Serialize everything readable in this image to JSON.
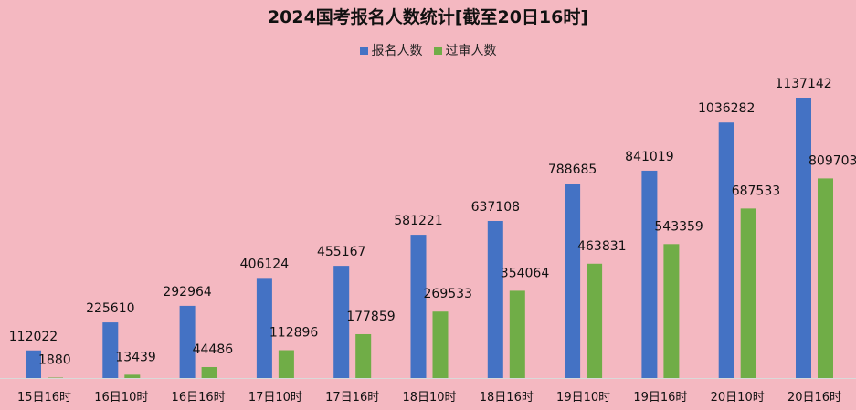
{
  "chart_data": {
    "type": "bar",
    "title": "2024国考报名人数统计[截至20日16时]",
    "categories": [
      "15日16时",
      "16日10时",
      "16日16时",
      "17日10时",
      "17日16时",
      "18日10时",
      "18日16时",
      "19日10时",
      "19日16时",
      "20日10时",
      "20日16时"
    ],
    "series": [
      {
        "name": "报名人数",
        "color": "#4472c4",
        "values": [
          112022,
          225610,
          292964,
          406124,
          455167,
          581221,
          637108,
          788685,
          841019,
          1036282,
          1137142
        ]
      },
      {
        "name": "过审人数",
        "color": "#70ad47",
        "values": [
          1880,
          13439,
          44486,
          112896,
          177859,
          269533,
          354064,
          463831,
          543359,
          687533,
          809703
        ]
      }
    ],
    "ylim": [
      0,
      1137142
    ],
    "grid": false,
    "legend_position": "top"
  }
}
